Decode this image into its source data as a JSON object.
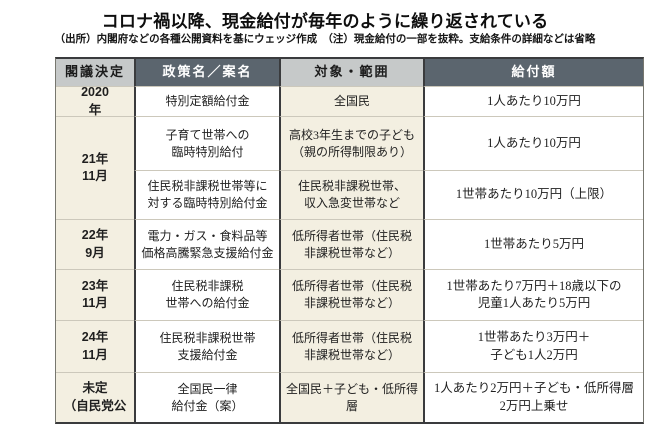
{
  "page": {
    "title": "コロナ禍以降、現金給付が毎年のように繰り返されている",
    "note": "（出所）内閣府などの各種公開資料を基にウェッジ作成　（注）現金給付の一部を抜粋。支給条件の詳細などは省略"
  },
  "colors": {
    "header_dark": "#5b656e",
    "header_light": "#c6c9c9",
    "cell_cream": "#f3efe1",
    "cell_white": "#ffffff",
    "divider_dark": "#3a3b3d",
    "divider_light": "#ccc8bb"
  },
  "chart_data": {
    "type": "table",
    "title": "コロナ禍以降、現金給付が毎年のように繰り返されている",
    "source_note": "（出所）内閣府などの各種公開資料を基にウェッジ作成　（注）現金給付の一部を抜粋。支給条件の詳細などは省略",
    "columns": [
      "閣議決定",
      "政策名／案名",
      "対象・範囲",
      "給付額"
    ],
    "rows": [
      {
        "date": "2020\n年",
        "policy": "特別定額給付金",
        "target": "全国民",
        "amount": "1人あたり10万円"
      },
      {
        "date": "21年\n11月",
        "policy": "子育て世帯への\n臨時特別給付",
        "target": "高校3年生までの子ども\n（親の所得制限あり）",
        "amount": "1人あたり10万円"
      },
      {
        "date": "",
        "policy": "住民税非課税世帯等に\n対する臨時特別給付金",
        "target": "住民税非課税世帯、\n収入急変世帯など",
        "amount": "1世帯あたり10万円（上限）"
      },
      {
        "date": "22年\n9月",
        "policy": "電力・ガス・食料品等\n価格高騰緊急支援給付金",
        "target": "低所得者世帯（住民税\n非課税世帯など）",
        "amount": "1世帯あたり5万円"
      },
      {
        "date": "23年\n11月",
        "policy": "住民税非課税\n世帯への給付金",
        "target": "低所得者世帯（住民税\n非課税世帯など）",
        "amount": "1世帯あたり7万円＋18歳以下の\n児童1人あたり5万円"
      },
      {
        "date": "24年\n11月",
        "policy": "住民税非課税世帯\n支援給付金",
        "target": "低所得者世帯（住民税\n非課税世帯など）",
        "amount": "1世帯あたり3万円＋\n子ども1人2万円"
      },
      {
        "date": "未定\n（自民党公",
        "policy": "全国民一律\n給付金（案）",
        "target": "全国民＋子ども・低所得層",
        "amount": "1人あたり2万円＋子ども・低所得層\n2万円上乗せ"
      }
    ]
  }
}
